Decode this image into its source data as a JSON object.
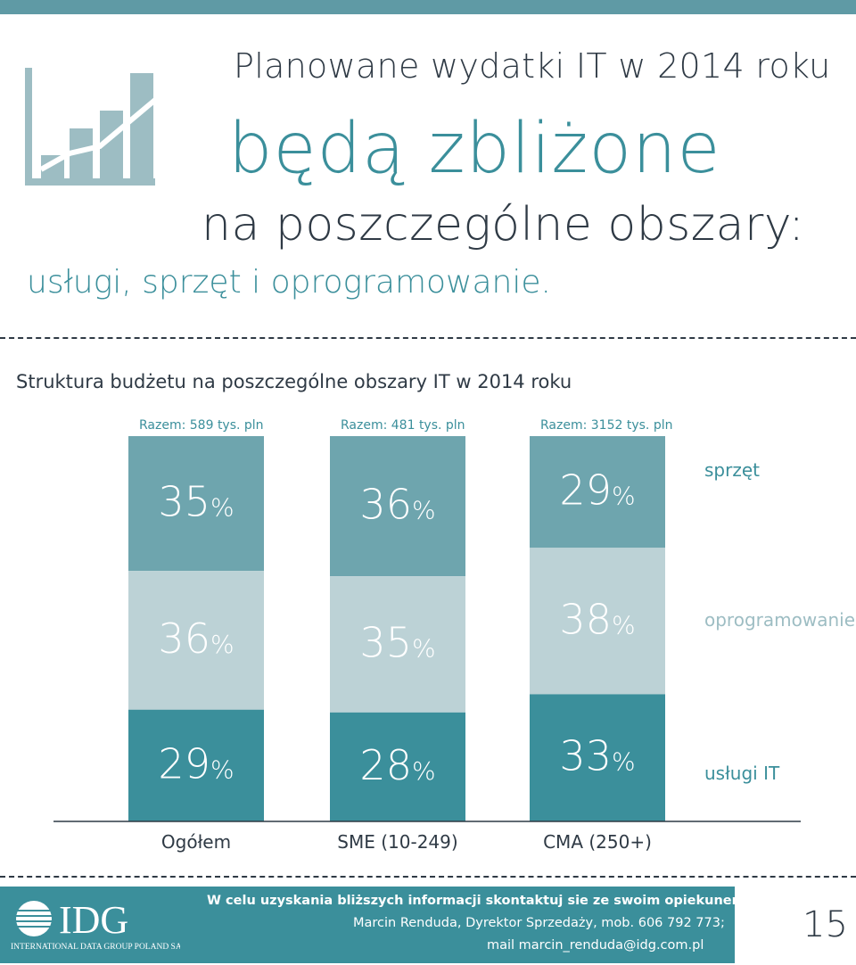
{
  "header": {
    "line1": "Planowane wydatki IT w 2014 roku",
    "line2": "będą zbliżone",
    "line3": "na poszczególne obszary:",
    "line4": "usługi, sprzęt i oprogramowanie."
  },
  "colors": {
    "accent": "#3b8f9b",
    "sprzet": "#6ea5ae",
    "oprogramowanie": "#bcd2d6",
    "uslugi": "#3b8f9b",
    "text": "#2f3a45",
    "topbar": "#5f9aa5"
  },
  "chart_data": {
    "type": "bar",
    "stacked": true,
    "title": "Struktura budżetu na poszczególne obszary IT w 2014 roku",
    "categories": [
      "Ogółem",
      "SME (10-249)",
      "CMA (250+)"
    ],
    "totals": [
      "Razem: 589 tys. pln",
      "Razem: 481 tys. pln",
      "Razem: 3152 tys. pln"
    ],
    "unit": "%",
    "series": [
      {
        "name": "sprzęt",
        "values": [
          35,
          36,
          29
        ]
      },
      {
        "name": "oprogramowanie",
        "values": [
          36,
          35,
          38
        ]
      },
      {
        "name": "usługi IT",
        "values": [
          29,
          28,
          33
        ]
      }
    ],
    "legend": "right"
  },
  "footer": {
    "contact_heading": "W celu uzyskania bliższych informacji skontaktuj sie ze swoim opiekunem lub:",
    "contact_person": "Marcin Renduda, Dyrektor Sprzedaży, mob. 606 792 773;",
    "contact_mail": "mail marcin_renduda@idg.com.pl",
    "logo_text": "IDG",
    "logo_subtext": "INTERNATIONAL DATA GROUP POLAND SA",
    "page_number": "15"
  }
}
